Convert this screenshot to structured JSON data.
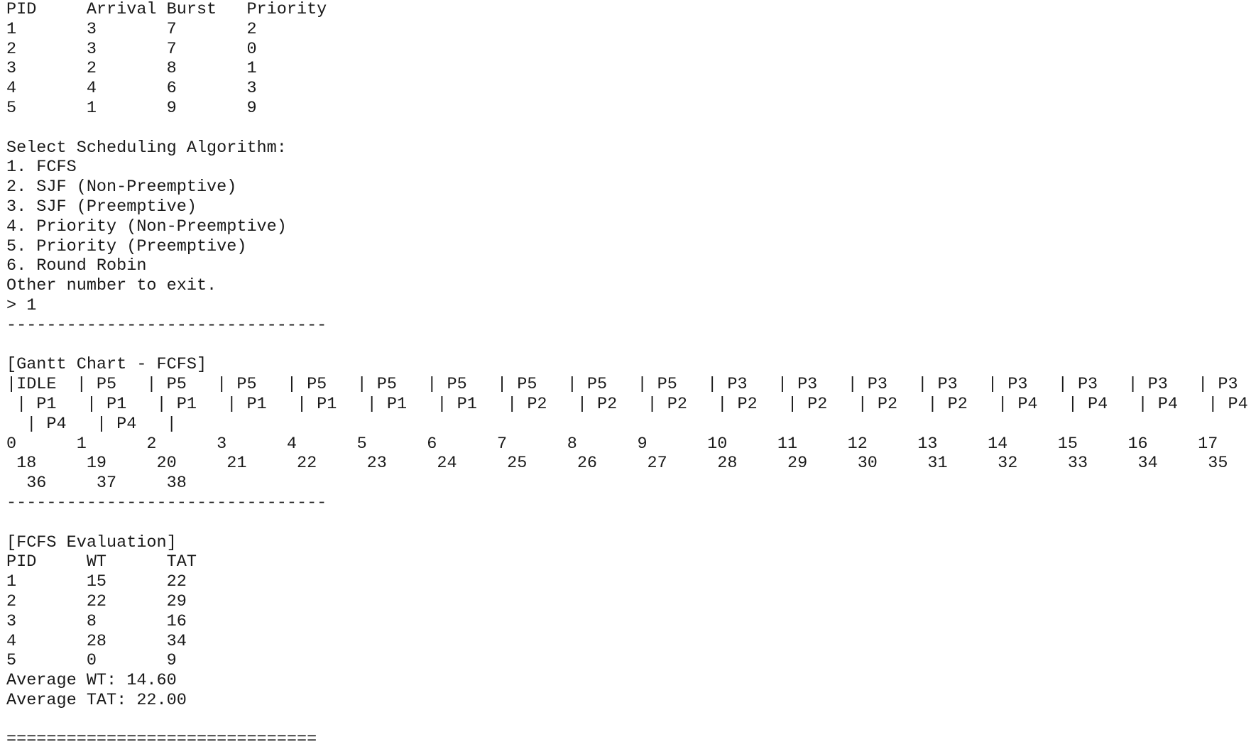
{
  "process_table": {
    "header": "PID     Arrival Burst   Priority",
    "rows": [
      "1       3       7       2",
      "2       3       7       0",
      "3       2       8       1",
      "4       4       6       3",
      "5       1       9       9"
    ]
  },
  "menu": {
    "title": "Select Scheduling Algorithm:",
    "options": [
      "1. FCFS",
      "2. SJF (Non-Preemptive)",
      "3. SJF (Preemptive)",
      "4. Priority (Non-Preemptive)",
      "5. Priority (Preemptive)",
      "6. Round Robin"
    ],
    "exit_hint": "Other number to exit.",
    "input": "> 1"
  },
  "separator_1": "--------------------------------",
  "gantt": {
    "title": "[Gantt Chart - FCFS]",
    "bar_rows": [
      "|IDLE  | P5   | P5   | P5   | P5   | P5   | P5   | P5   | P5   | P5   | P3   | P3   | P3   | P3   | P3   | P3   | P3   | P3",
      " | P1   | P1   | P1   | P1   | P1   | P1   | P1   | P2   | P2   | P2   | P2   | P2   | P2   | P2   | P4   | P4   | P4   | P4",
      "  | P4   | P4   |"
    ],
    "tick_rows": [
      "0      1      2      3      4      5      6      7      8      9      10     11     12     13     14     15     16     17",
      " 18     19     20     21     22     23     24     25     26     27     28     29     30     31     32     33     34     35",
      "  36     37     38"
    ]
  },
  "separator_2": "--------------------------------",
  "evaluation": {
    "title": "[FCFS Evaluation]",
    "header": "PID     WT      TAT",
    "rows": [
      "1       15      22",
      "2       22      29",
      "3       8       16",
      "4       28      34",
      "5       0       9"
    ],
    "average_wt": "Average WT: 14.60",
    "average_tat": "Average TAT: 22.00"
  },
  "footer_rule": "==============================="
}
